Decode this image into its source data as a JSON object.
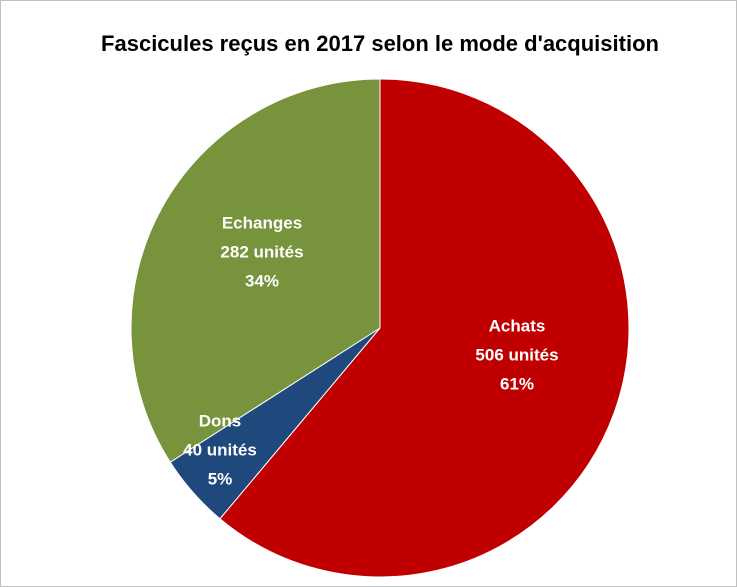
{
  "chart_data": {
    "type": "pie",
    "title": "Fascicules reçus en 2017 selon le mode d'acquisition",
    "categories": [
      "Achats",
      "Dons",
      "Echanges"
    ],
    "values": [
      506,
      40,
      282
    ],
    "value_labels": [
      "506 unités",
      "40 unités",
      "282 unités"
    ],
    "percents": [
      61,
      5,
      34
    ],
    "percent_labels": [
      "61%",
      "5%",
      "34%"
    ],
    "colors": [
      "#c00000",
      "#1f497d",
      "#77933c"
    ]
  }
}
